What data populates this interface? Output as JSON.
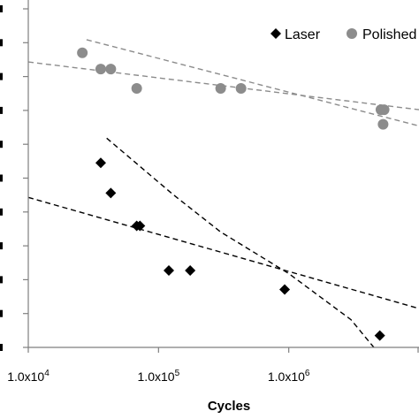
{
  "chart_data": {
    "type": "scatter",
    "title": "",
    "xlabel": "Cycles",
    "ylabel": "",
    "x_scale": "log",
    "xlim": [
      10000,
      10000000
    ],
    "y_tick_count": 11,
    "x_tick_labels": [
      {
        "value": 10000,
        "label": "1.0x10",
        "exp": "4"
      },
      {
        "value": 100000,
        "label": "1.0x10",
        "exp": "5"
      },
      {
        "value": 1000000,
        "label": "1.0x10",
        "exp": "6"
      }
    ],
    "legend_position": "top-right",
    "series": [
      {
        "name": "Laser",
        "marker": "diamond",
        "color": "#000000",
        "points": [
          {
            "x": 36000,
            "y": 0.545
          },
          {
            "x": 43000,
            "y": 0.456
          },
          {
            "x": 68000,
            "y": 0.359
          },
          {
            "x": 72000,
            "y": 0.359
          },
          {
            "x": 120000,
            "y": 0.227
          },
          {
            "x": 175000,
            "y": 0.227
          },
          {
            "x": 930000,
            "y": 0.171
          },
          {
            "x": 5000000,
            "y": 0.035
          }
        ]
      },
      {
        "name": "Polished",
        "marker": "circle",
        "color": "#8c8c8c",
        "points": [
          {
            "x": 26000,
            "y": 0.87
          },
          {
            "x": 36000,
            "y": 0.822
          },
          {
            "x": 43000,
            "y": 0.822
          },
          {
            "x": 68000,
            "y": 0.765
          },
          {
            "x": 300000,
            "y": 0.765
          },
          {
            "x": 430000,
            "y": 0.765
          },
          {
            "x": 5100000,
            "y": 0.702
          },
          {
            "x": 5400000,
            "y": 0.702
          },
          {
            "x": 5300000,
            "y": 0.659
          }
        ]
      }
    ],
    "trend_lines": [
      {
        "series": "Polished",
        "color": "#8c8c8c",
        "points": [
          {
            "x": 10000,
            "y": 0.843
          },
          {
            "x": 10000000,
            "y": 0.702
          }
        ]
      },
      {
        "series": "Polished",
        "color": "#8c8c8c",
        "points": [
          {
            "x": 28000,
            "y": 0.909
          },
          {
            "x": 10000000,
            "y": 0.654
          }
        ]
      },
      {
        "series": "Laser",
        "color": "#000000",
        "points": [
          {
            "x": 10000,
            "y": 0.443
          },
          {
            "x": 10000000,
            "y": 0.115
          }
        ]
      },
      {
        "series": "Laser",
        "color": "#000000",
        "points": [
          {
            "x": 40000,
            "y": 0.618
          },
          {
            "x": 130000,
            "y": 0.451
          },
          {
            "x": 300000,
            "y": 0.341
          },
          {
            "x": 1000000,
            "y": 0.218
          },
          {
            "x": 3000000,
            "y": 0.082
          },
          {
            "x": 4500000,
            "y": 0.0
          }
        ]
      }
    ]
  }
}
